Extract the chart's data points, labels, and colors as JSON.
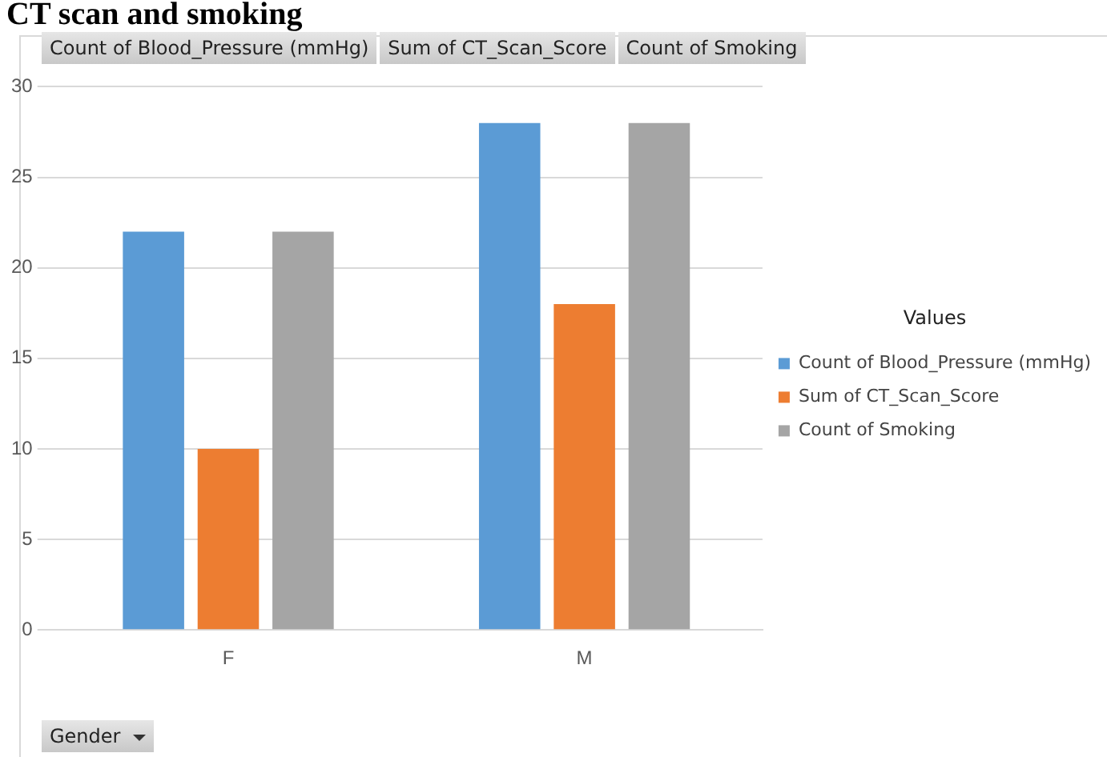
{
  "chart_data": {
    "type": "bar",
    "title": "CT scan and smoking",
    "xlabel": "Gender",
    "legend_title": "Values",
    "categories": [
      "F",
      "M"
    ],
    "series": [
      {
        "name": "Count of Blood_Pressure (mmHg)",
        "color": "#5b9bd5",
        "values": [
          22,
          28
        ]
      },
      {
        "name": "Sum of CT_Scan_Score",
        "color": "#ed7d31",
        "values": [
          10,
          18
        ]
      },
      {
        "name": "Count of Smoking",
        "color": "#a5a5a5",
        "values": [
          22,
          28
        ]
      }
    ],
    "ylim": [
      0,
      30
    ],
    "yticks": [
      0,
      5,
      10,
      15,
      20,
      25,
      30
    ],
    "grid": "y",
    "legend": "right"
  }
}
